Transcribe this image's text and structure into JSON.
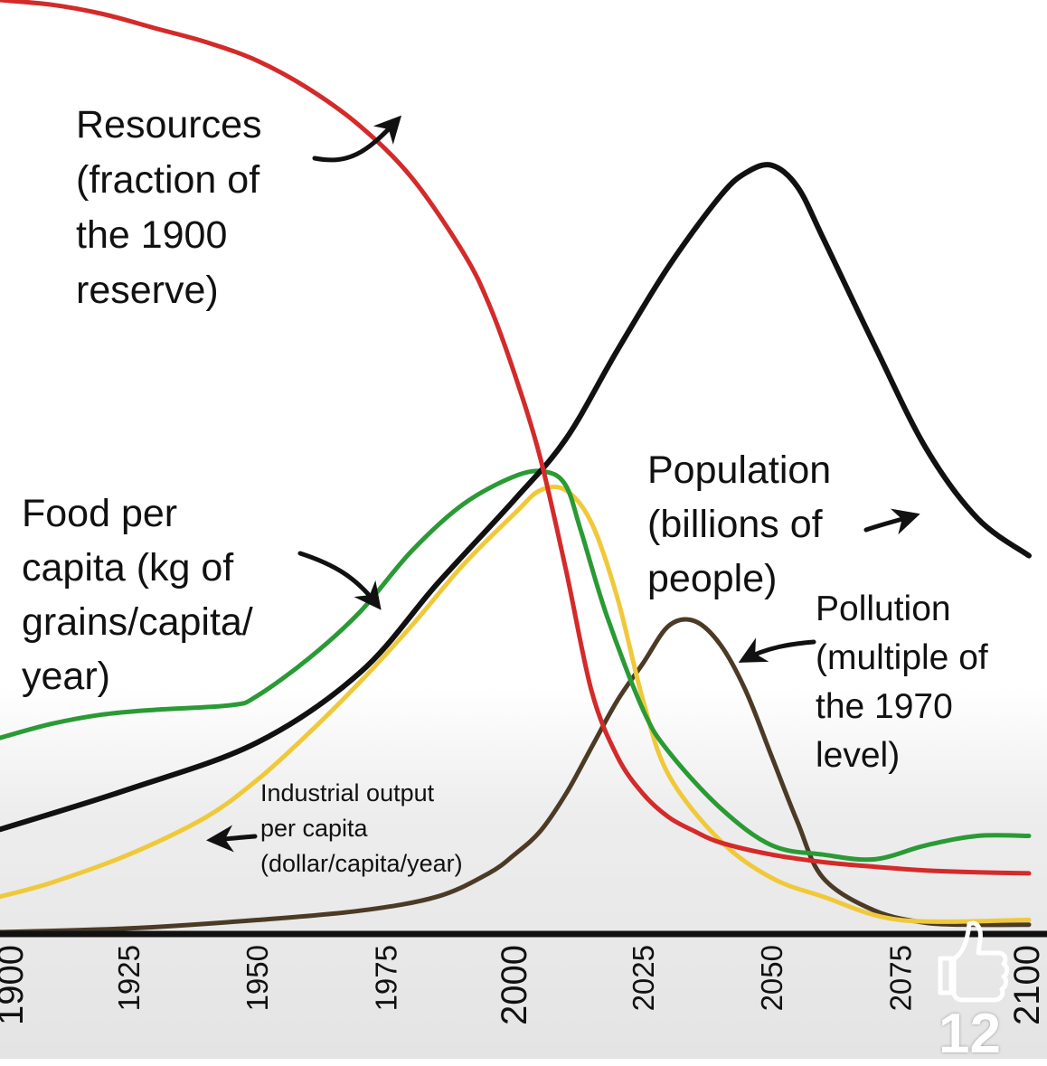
{
  "chart_data": {
    "type": "line",
    "title": "",
    "xlabel": "",
    "ylabel": "",
    "xlim": [
      1900,
      2100
    ],
    "x_ticks": [
      "1900",
      "1925",
      "1950",
      "1975",
      "2000",
      "2025",
      "2050",
      "2075",
      "2100"
    ],
    "grid": false,
    "legend": "none",
    "series": [
      {
        "name": "Resources (fraction of the 1900 reserve)",
        "color": "#d42a2a",
        "x": [
          1900,
          1910,
          1920,
          1930,
          1940,
          1950,
          1960,
          1970,
          1980,
          1990,
          1995,
          2000,
          2005,
          2010,
          2015,
          2020,
          2025,
          2030,
          2035,
          2040,
          2050,
          2060,
          2070,
          2080,
          2090,
          2100
        ],
        "y": [
          1.0,
          0.995,
          0.985,
          0.97,
          0.955,
          0.935,
          0.905,
          0.865,
          0.81,
          0.73,
          0.675,
          0.6,
          0.51,
          0.39,
          0.26,
          0.19,
          0.15,
          0.125,
          0.11,
          0.098,
          0.085,
          0.077,
          0.072,
          0.068,
          0.066,
          0.065
        ]
      },
      {
        "name": "Population (billions of people)",
        "color": "#111111",
        "x": [
          1900,
          1925,
          1950,
          1970,
          1985,
          2000,
          2010,
          2020,
          2030,
          2040,
          2045,
          2050,
          2055,
          2060,
          2070,
          2080,
          2090,
          2100
        ],
        "y": [
          0.112,
          0.155,
          0.205,
          0.28,
          0.375,
          0.465,
          0.53,
          0.625,
          0.715,
          0.79,
          0.815,
          0.823,
          0.8,
          0.745,
          0.63,
          0.52,
          0.445,
          0.405
        ]
      },
      {
        "name": "Food per capita (kg of grains/capita/year)",
        "color": "#2a9a35",
        "x": [
          1900,
          1910,
          1920,
          1930,
          1945,
          1950,
          1960,
          1970,
          1980,
          1990,
          2000,
          2006,
          2010,
          2013,
          2018,
          2025,
          2030,
          2040,
          2050,
          2060,
          2070,
          2080,
          2090,
          2100
        ],
        "y": [
          0.21,
          0.225,
          0.235,
          0.24,
          0.245,
          0.255,
          0.295,
          0.345,
          0.41,
          0.46,
          0.49,
          0.495,
          0.48,
          0.43,
          0.34,
          0.24,
          0.195,
          0.135,
          0.095,
          0.085,
          0.08,
          0.095,
          0.105,
          0.105
        ]
      },
      {
        "name": "Industrial output per capita (dollar/capita/year)",
        "color": "#f0c93a",
        "x": [
          1900,
          1910,
          1925,
          1940,
          1950,
          1960,
          1970,
          1980,
          1990,
          2000,
          2005,
          2010,
          2015,
          2020,
          2025,
          2030,
          2040,
          2050,
          2060,
          2075,
          2100
        ],
        "y": [
          0.04,
          0.055,
          0.085,
          0.125,
          0.165,
          0.215,
          0.27,
          0.33,
          0.395,
          0.45,
          0.475,
          0.475,
          0.44,
          0.36,
          0.25,
          0.17,
          0.1,
          0.06,
          0.04,
          0.015,
          0.015
        ]
      },
      {
        "name": "Pollution (multiple of the 1970 level)",
        "color": "#4b3a25",
        "x": [
          1900,
          1925,
          1950,
          1970,
          1985,
          1995,
          2000,
          2005,
          2010,
          2015,
          2020,
          2025,
          2030,
          2035,
          2040,
          2045,
          2050,
          2055,
          2060,
          2070,
          2080,
          2090,
          2100
        ],
        "y": [
          0.002,
          0.006,
          0.015,
          0.025,
          0.04,
          0.065,
          0.085,
          0.11,
          0.15,
          0.2,
          0.25,
          0.29,
          0.33,
          0.335,
          0.31,
          0.26,
          0.19,
          0.12,
          0.06,
          0.025,
          0.012,
          0.01,
          0.01
        ]
      }
    ],
    "annotations": [
      {
        "series": 0,
        "lines": [
          "Resources",
          "(fraction of",
          "the 1900",
          "reserve)"
        ]
      },
      {
        "series": 1,
        "lines": [
          "Population",
          "(billions of",
          "people)"
        ]
      },
      {
        "series": 2,
        "lines": [
          "Food per",
          "capita (kg of",
          "grains/capita/",
          "year)"
        ]
      },
      {
        "series": 3,
        "lines": [
          "Industrial output",
          "per capita",
          "(dollar/capita/year)"
        ]
      },
      {
        "series": 4,
        "lines": [
          "Pollution",
          "(multiple of",
          "the 1970",
          "level)"
        ]
      }
    ]
  },
  "overlay": {
    "like_icon": "thumbs-up-icon",
    "like_count": "12"
  }
}
